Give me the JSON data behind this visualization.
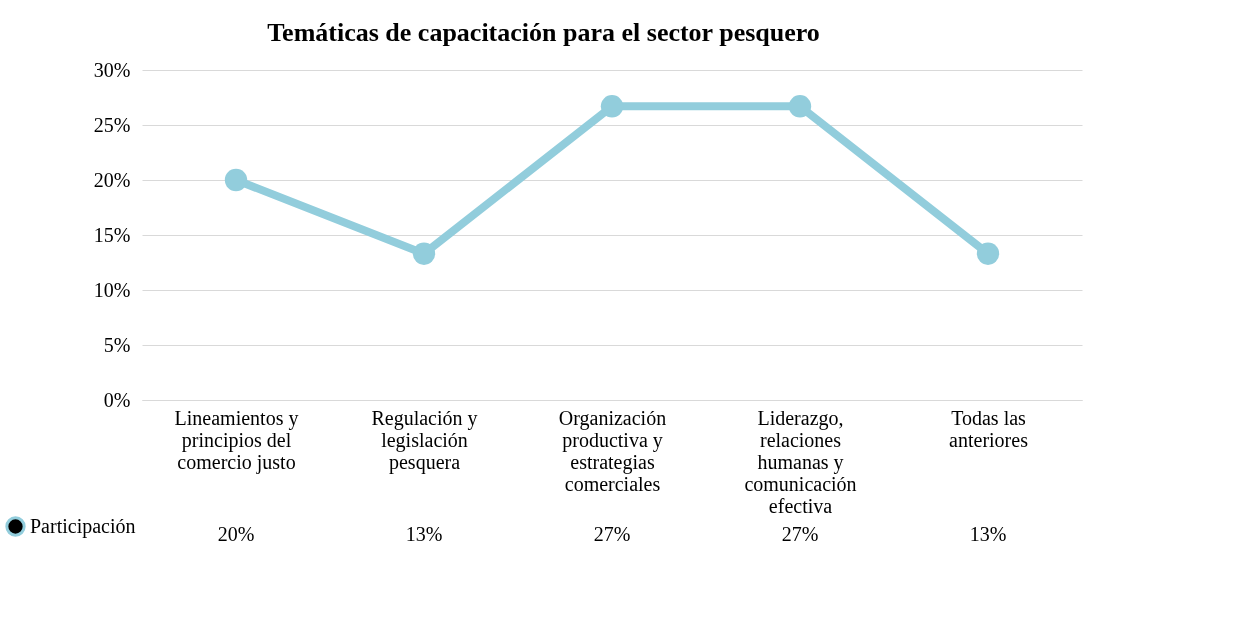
{
  "chart_data": {
    "type": "line",
    "title": "Temáticas de capacitación para el sector pesquero",
    "categories": [
      "Lineamientos y principios del comercio justo",
      "Regulación y legislación pesquera",
      "Organización productiva y estrategias comerciales",
      "Liderazgo, relaciones humanas y comunicación efectiva",
      "Todas las anteriores"
    ],
    "series": [
      {
        "name": "Participación",
        "color": "#92cddc",
        "values": [
          20,
          13.3,
          26.7,
          26.7,
          13.3
        ],
        "value_labels": [
          "20%",
          "13%",
          "27%",
          "27%",
          "13%"
        ]
      }
    ],
    "ylim": [
      0,
      30
    ],
    "yticks": [
      {
        "value": 0,
        "label": "0%"
      },
      {
        "value": 5,
        "label": "5%"
      },
      {
        "value": 10,
        "label": "10%"
      },
      {
        "value": 15,
        "label": "15%"
      },
      {
        "value": 20,
        "label": "20%"
      },
      {
        "value": 25,
        "label": "25%"
      },
      {
        "value": 30,
        "label": "30%"
      }
    ],
    "grid": "y",
    "legend": "bottom left",
    "marker": "circle",
    "line_style": "solid"
  }
}
